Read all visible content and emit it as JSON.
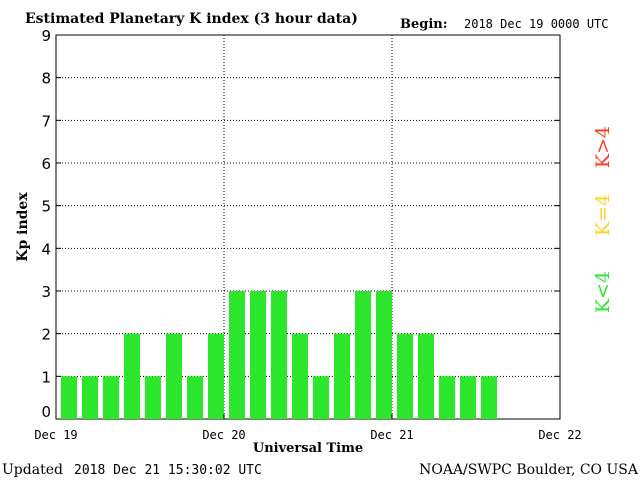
{
  "header": {
    "title": "Estimated Planetary K index (3 hour data)",
    "begin_label": "Begin:",
    "begin_value": "2018 Dec 19 0000 UTC"
  },
  "footer": {
    "updated_label": "Updated",
    "updated_value": "2018 Dec 21 15:30:02 UTC",
    "credit": "NOAA/SWPC Boulder, CO USA"
  },
  "legend": [
    {
      "label": "K>4",
      "color": "#ff3b1f"
    },
    {
      "label": "K=4",
      "color": "#ffd21f"
    },
    {
      "label": "K<4",
      "color": "#2ce62c"
    }
  ],
  "chart_data": {
    "type": "bar",
    "title": "Estimated Planetary K index (3 hour data)",
    "xlabel": "Universal Time",
    "ylabel": "Kp index",
    "ylim": [
      0,
      9
    ],
    "yticks": [
      "0",
      "1",
      "2",
      "3",
      "4",
      "5",
      "6",
      "7",
      "8",
      "9"
    ],
    "xticks": [
      "Dec 19",
      "Dec 20",
      "Dec 21",
      "Dec 22"
    ],
    "x_interval": "3 hours",
    "grid": true,
    "bar_color": "#2ce62c",
    "categories": [
      "Dec 19 00",
      "Dec 19 03",
      "Dec 19 06",
      "Dec 19 09",
      "Dec 19 12",
      "Dec 19 15",
      "Dec 19 18",
      "Dec 19 21",
      "Dec 20 00",
      "Dec 20 03",
      "Dec 20 06",
      "Dec 20 09",
      "Dec 20 12",
      "Dec 20 15",
      "Dec 20 18",
      "Dec 20 21",
      "Dec 21 00",
      "Dec 21 03",
      "Dec 21 06",
      "Dec 21 09",
      "Dec 21 12"
    ],
    "values": [
      1,
      1,
      1,
      2,
      1,
      2,
      1,
      2,
      3,
      3,
      3,
      2,
      1,
      2,
      3,
      3,
      2,
      2,
      1,
      1,
      1
    ]
  }
}
